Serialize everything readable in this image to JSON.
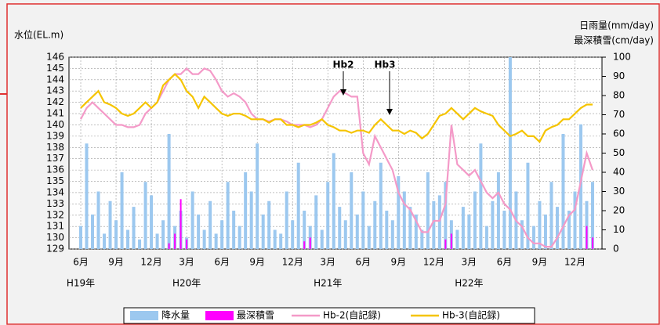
{
  "chart_data": {
    "type": "combo",
    "y_title": "水位(EL.m)",
    "y2_title": [
      "日雨量(mm/day)",
      "最深積雪(cm/day)"
    ],
    "annotations": [
      "Hb2",
      "Hb3"
    ],
    "x": [
      0,
      0.5,
      1,
      1.5,
      2,
      2.5,
      3,
      3.5,
      4,
      4.5,
      5,
      5.5,
      6,
      6.5,
      7,
      7.5,
      8,
      8.5,
      9,
      9.5,
      10,
      10.5,
      11,
      11.5,
      12,
      12.5,
      13,
      13.5,
      14,
      14.5,
      15,
      15.5,
      16,
      16.5,
      17,
      17.5,
      18,
      18.5,
      19,
      19.5,
      20,
      20.5,
      21,
      21.5,
      22,
      22.5,
      23,
      23.5,
      24,
      24.5,
      25,
      25.5,
      26,
      26.5,
      27,
      27.5,
      28,
      28.5,
      29,
      29.5,
      30,
      30.5,
      31,
      31.5,
      32,
      32.5,
      33,
      33.5,
      34,
      34.5,
      35,
      35.5,
      36,
      36.5,
      37,
      37.5,
      38,
      38.5,
      39,
      39.5,
      40,
      40.5,
      41,
      41.5,
      42,
      42.5,
      43,
      43.5
    ],
    "xlim": [
      -1,
      44.3
    ],
    "xticks": [
      {
        "value": 0,
        "label": "6月"
      },
      {
        "value": 3,
        "label": "9月"
      },
      {
        "value": 6,
        "label": "12月"
      },
      {
        "value": 9,
        "label": "3月"
      },
      {
        "value": 12,
        "label": "6月"
      },
      {
        "value": 15,
        "label": "9月"
      },
      {
        "value": 18,
        "label": "12月"
      },
      {
        "value": 21,
        "label": "3月"
      },
      {
        "value": 24,
        "label": "6月"
      },
      {
        "value": 27,
        "label": "9月"
      },
      {
        "value": 30,
        "label": "12月"
      },
      {
        "value": 33,
        "label": "3月"
      },
      {
        "value": 36,
        "label": "6月"
      },
      {
        "value": 39,
        "label": "9月"
      },
      {
        "value": 42,
        "label": "12月"
      }
    ],
    "year_ticks": [
      {
        "value": 0,
        "label": "H19年"
      },
      {
        "value": 9,
        "label": "H20年"
      },
      {
        "value": 21,
        "label": "H21年"
      },
      {
        "value": 33,
        "label": "H22年"
      }
    ],
    "ylim": [
      129,
      146
    ],
    "yticks": [
      129,
      130,
      131,
      132,
      133,
      134,
      135,
      136,
      137,
      138,
      139,
      140,
      141,
      142,
      143,
      144,
      145,
      146
    ],
    "y2lim": [
      0,
      100
    ],
    "y2ticks": [
      0,
      10,
      20,
      30,
      40,
      50,
      60,
      70,
      80,
      90,
      100
    ],
    "grid": true,
    "series": [
      {
        "name": "降水量",
        "kind": "bar",
        "axis": "y2",
        "color": "#9cc8ef",
        "values": [
          12,
          55,
          18,
          30,
          8,
          25,
          15,
          40,
          10,
          22,
          5,
          35,
          28,
          8,
          15,
          60,
          12,
          20,
          6,
          30,
          18,
          10,
          25,
          8,
          15,
          35,
          20,
          12,
          40,
          30,
          55,
          18,
          25,
          10,
          8,
          30,
          15,
          45,
          20,
          12,
          28,
          10,
          35,
          50,
          22,
          15,
          40,
          18,
          30,
          12,
          25,
          45,
          20,
          15,
          38,
          30,
          22,
          18,
          10,
          40,
          25,
          28,
          35,
          15,
          10,
          22,
          18,
          30,
          55,
          12,
          25,
          40,
          20,
          100,
          30,
          15,
          45,
          12,
          25,
          18,
          35,
          22,
          60,
          20,
          30,
          65,
          25,
          35
        ]
      },
      {
        "name": "最深積雪",
        "kind": "bar",
        "axis": "y2",
        "color": "#ff00ff",
        "values": [
          0,
          0,
          0,
          0,
          0,
          0,
          0,
          0,
          0,
          0,
          0,
          0,
          0,
          0,
          0,
          3,
          8,
          26,
          5,
          0,
          0,
          0,
          0,
          0,
          0,
          0,
          0,
          0,
          0,
          0,
          0,
          0,
          0,
          0,
          0,
          0,
          0,
          0,
          4,
          6,
          0,
          0,
          0,
          0,
          0,
          0,
          0,
          0,
          0,
          0,
          0,
          0,
          0,
          0,
          0,
          0,
          0,
          0,
          0,
          0,
          0,
          0,
          5,
          8,
          0,
          0,
          0,
          0,
          0,
          0,
          0,
          0,
          0,
          0,
          0,
          0,
          0,
          0,
          0,
          0,
          0,
          0,
          0,
          0,
          0,
          0,
          12,
          6
        ]
      },
      {
        "name": "Hb-2(自記録)",
        "kind": "line",
        "color": "#f49ac8",
        "values": [
          140.5,
          141.5,
          142,
          141.5,
          141,
          140.5,
          140,
          140,
          139.8,
          139.8,
          140,
          141,
          141.5,
          142,
          143,
          144,
          144.5,
          144.5,
          145,
          144.5,
          144.5,
          145,
          144.8,
          144,
          143,
          142.5,
          142.8,
          142.5,
          142,
          141,
          140.5,
          140.5,
          140.3,
          140.5,
          140.5,
          140.3,
          140,
          140,
          140,
          139.8,
          140,
          140.5,
          141.5,
          142.5,
          143,
          142.8,
          142.5,
          142.5,
          137.5,
          136.5,
          139,
          138,
          137,
          136,
          134,
          133,
          132.5,
          131.5,
          130.5,
          130.5,
          131.5,
          131.5,
          133,
          140,
          136.5,
          136,
          135.5,
          136,
          135,
          134,
          133.5,
          134,
          133,
          132.5,
          131.5,
          131,
          130,
          129.5,
          129.5,
          129.2,
          129.2,
          130,
          131,
          132,
          132.5,
          135,
          137.5,
          136
        ]
      },
      {
        "name": "Hb-3(自記録)",
        "kind": "line",
        "color": "#f5c400",
        "values": [
          141.5,
          142,
          142.5,
          143,
          142,
          141.8,
          141.5,
          141,
          140.8,
          141,
          141.5,
          142,
          141.5,
          142,
          143.5,
          144,
          144.5,
          144,
          143,
          142.5,
          141.5,
          142.5,
          142,
          141.5,
          141,
          140.8,
          141,
          141,
          140.8,
          140.5,
          140.5,
          140.5,
          140.2,
          140.5,
          140.5,
          140,
          140,
          139.8,
          140,
          140,
          140.2,
          140.5,
          140,
          139.8,
          139.5,
          139.5,
          139.3,
          139.5,
          139.5,
          139.3,
          140,
          140.5,
          140,
          139.5,
          139.5,
          139.2,
          139.5,
          139.3,
          138.8,
          139.2,
          140,
          140.8,
          141,
          141.5,
          141,
          140.5,
          141,
          141.5,
          141.2,
          141,
          140.8,
          140,
          139.5,
          139,
          139.2,
          139.5,
          139,
          139,
          138.5,
          139.5,
          139.8,
          140,
          140.5,
          140.5,
          141,
          141.5,
          141.8,
          141.8
        ]
      }
    ]
  }
}
